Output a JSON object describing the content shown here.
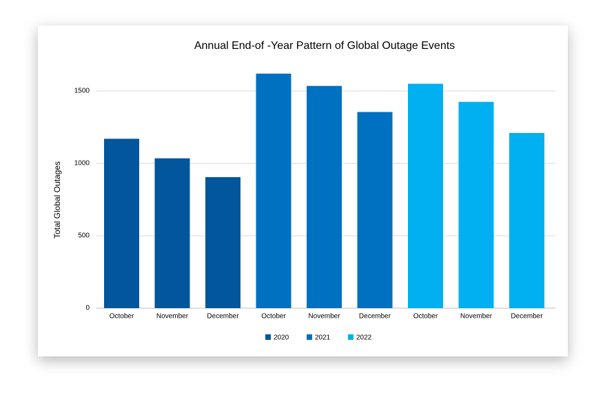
{
  "chart_data": {
    "type": "bar",
    "title": "Annual End-of -Year Pattern of Global Outage Events",
    "y_label": "Total Global Outages",
    "categories": [
      "October",
      "November",
      "December"
    ],
    "series": [
      {
        "name": "2020",
        "color": "#02569b",
        "values": [
          1170,
          1035,
          905
        ]
      },
      {
        "name": "2021",
        "color": "#0070c0",
        "values": [
          1620,
          1535,
          1355
        ]
      },
      {
        "name": "2022",
        "color": "#00b0f0",
        "values": [
          1550,
          1425,
          1210
        ]
      }
    ],
    "ylim": [
      0,
      1700
    ],
    "yticks": [
      0,
      500,
      1000,
      1500
    ],
    "grid": true,
    "legend": "bottom"
  }
}
